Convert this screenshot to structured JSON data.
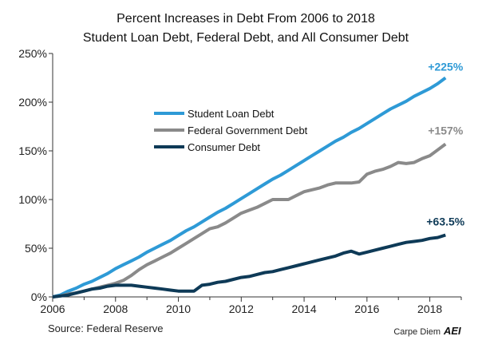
{
  "chart_data": {
    "type": "line",
    "title_line1": "Percent Increases in Debt From 2006 to 2018",
    "title_line2": "Student Loan Debt, Federal Debt, and All Consumer Debt",
    "source": "Source: Federal Reserve",
    "branding": "Carpe Diem",
    "brand_logo_text": "AEI",
    "xlim": [
      2006,
      2019
    ],
    "ylim": [
      0,
      250
    ],
    "xticks": [
      2006,
      2008,
      2010,
      2012,
      2014,
      2016,
      2018
    ],
    "xtick_labels": [
      "2006",
      "2008",
      "2010",
      "2012",
      "2014",
      "2016",
      "2018"
    ],
    "yticks": [
      0,
      50,
      100,
      150,
      200,
      250
    ],
    "ytick_labels": [
      "0%",
      "50%",
      "100%",
      "150%",
      "200%",
      "250%"
    ],
    "grid": false,
    "legend_position": "upper-left",
    "series": [
      {
        "name": "Student Loan Debt",
        "color": "#2e9ad6",
        "end_label": "+225%",
        "x": [
          2006.0,
          2006.25,
          2006.5,
          2006.75,
          2007.0,
          2007.25,
          2007.5,
          2007.75,
          2008.0,
          2008.25,
          2008.5,
          2008.75,
          2009.0,
          2009.25,
          2009.5,
          2009.75,
          2010.0,
          2010.25,
          2010.5,
          2010.75,
          2011.0,
          2011.25,
          2011.5,
          2011.75,
          2012.0,
          2012.25,
          2012.5,
          2012.75,
          2013.0,
          2013.25,
          2013.5,
          2013.75,
          2014.0,
          2014.25,
          2014.5,
          2014.75,
          2015.0,
          2015.25,
          2015.5,
          2015.75,
          2016.0,
          2016.25,
          2016.5,
          2016.75,
          2017.0,
          2017.25,
          2017.5,
          2017.75,
          2018.0,
          2018.25,
          2018.5
        ],
        "y": [
          0,
          2,
          6,
          9,
          13,
          16,
          20,
          24,
          29,
          33,
          37,
          41,
          46,
          50,
          54,
          58,
          63,
          68,
          72,
          77,
          82,
          87,
          91,
          96,
          101,
          106,
          111,
          116,
          121,
          125,
          130,
          135,
          140,
          145,
          150,
          155,
          160,
          164,
          169,
          173,
          178,
          183,
          188,
          193,
          197,
          201,
          206,
          210,
          214,
          219,
          225
        ]
      },
      {
        "name": "Federal Government Debt",
        "color": "#8a8a8a",
        "end_label": "+157%",
        "x": [
          2006.0,
          2006.25,
          2006.5,
          2006.75,
          2007.0,
          2007.25,
          2007.5,
          2007.75,
          2008.0,
          2008.25,
          2008.5,
          2008.75,
          2009.0,
          2009.25,
          2009.5,
          2009.75,
          2010.0,
          2010.25,
          2010.5,
          2010.75,
          2011.0,
          2011.25,
          2011.5,
          2011.75,
          2012.0,
          2012.25,
          2012.5,
          2012.75,
          2013.0,
          2013.25,
          2013.5,
          2013.75,
          2014.0,
          2014.25,
          2014.5,
          2014.75,
          2015.0,
          2015.25,
          2015.5,
          2015.75,
          2016.0,
          2016.25,
          2016.5,
          2016.75,
          2017.0,
          2017.25,
          2017.5,
          2017.75,
          2018.0,
          2018.25,
          2018.5
        ],
        "y": [
          0,
          1,
          3,
          4,
          6,
          8,
          10,
          12,
          14,
          17,
          22,
          28,
          33,
          37,
          41,
          45,
          50,
          55,
          60,
          65,
          70,
          72,
          76,
          81,
          86,
          89,
          92,
          96,
          100,
          100,
          100,
          104,
          108,
          110,
          112,
          115,
          117,
          117,
          117,
          118,
          126,
          129,
          131,
          134,
          138,
          137,
          138,
          142,
          145,
          151,
          157
        ]
      },
      {
        "name": "Consumer Debt",
        "color": "#0e3a57",
        "end_label": "+63.5%",
        "x": [
          2006.0,
          2006.25,
          2006.5,
          2006.75,
          2007.0,
          2007.25,
          2007.5,
          2007.75,
          2008.0,
          2008.25,
          2008.5,
          2008.75,
          2009.0,
          2009.25,
          2009.5,
          2009.75,
          2010.0,
          2010.25,
          2010.5,
          2010.75,
          2011.0,
          2011.25,
          2011.5,
          2011.75,
          2012.0,
          2012.25,
          2012.5,
          2012.75,
          2013.0,
          2013.25,
          2013.5,
          2013.75,
          2014.0,
          2014.25,
          2014.5,
          2014.75,
          2015.0,
          2015.25,
          2015.5,
          2015.75,
          2016.0,
          2016.25,
          2016.5,
          2016.75,
          2017.0,
          2017.25,
          2017.5,
          2017.75,
          2018.0,
          2018.25,
          2018.5
        ],
        "y": [
          0,
          1,
          2,
          4,
          6,
          8,
          9,
          11,
          12,
          12,
          12,
          11,
          10,
          9,
          8,
          7,
          6,
          6,
          6,
          12,
          13,
          15,
          16,
          18,
          20,
          21,
          23,
          25,
          26,
          28,
          30,
          32,
          34,
          36,
          38,
          40,
          42,
          45,
          47,
          44,
          46,
          48,
          50,
          52,
          54,
          56,
          57,
          58,
          60,
          61,
          63.5
        ]
      }
    ]
  }
}
